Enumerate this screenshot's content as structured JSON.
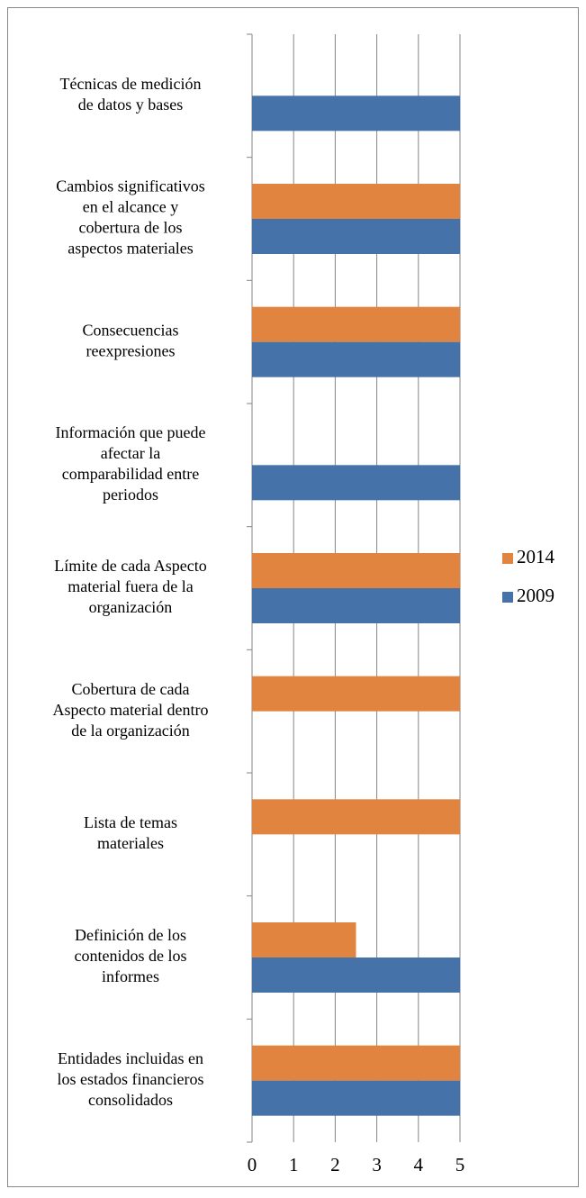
{
  "chart_data": {
    "type": "bar",
    "categories": [
      [
        "Técnicas de medición",
        "de datos y bases"
      ],
      [
        "Cambios significativos",
        "en el alcance y",
        "cobertura de los",
        "aspectos materiales"
      ],
      [
        "Consecuencias",
        "reexpresiones"
      ],
      [
        "Información que puede",
        "afectar la",
        "comparabilidad entre",
        "periodos"
      ],
      [
        "Límite de cada Aspecto",
        "material fuera de la",
        "organización"
      ],
      [
        "Cobertura de cada",
        "Aspecto material dentro",
        "de la organización"
      ],
      [
        "Lista de temas",
        "materiales"
      ],
      [
        "Definición de los",
        "contenidos de los",
        "informes"
      ],
      [
        "Entidades incluidas en",
        "los estados financieros",
        "consolidados"
      ]
    ],
    "series": [
      {
        "name": "2014",
        "color": "#e0843f",
        "values": [
          0,
          5,
          5,
          0,
          5,
          5,
          5,
          2.5,
          5
        ]
      },
      {
        "name": "2009",
        "color": "#4572a8",
        "values": [
          5,
          5,
          5,
          5,
          5,
          0,
          0,
          5,
          5
        ]
      }
    ],
    "xlim": [
      0,
      5
    ],
    "xticks": [
      0,
      1,
      2,
      3,
      4,
      5
    ],
    "grid": true,
    "legend": "right"
  }
}
